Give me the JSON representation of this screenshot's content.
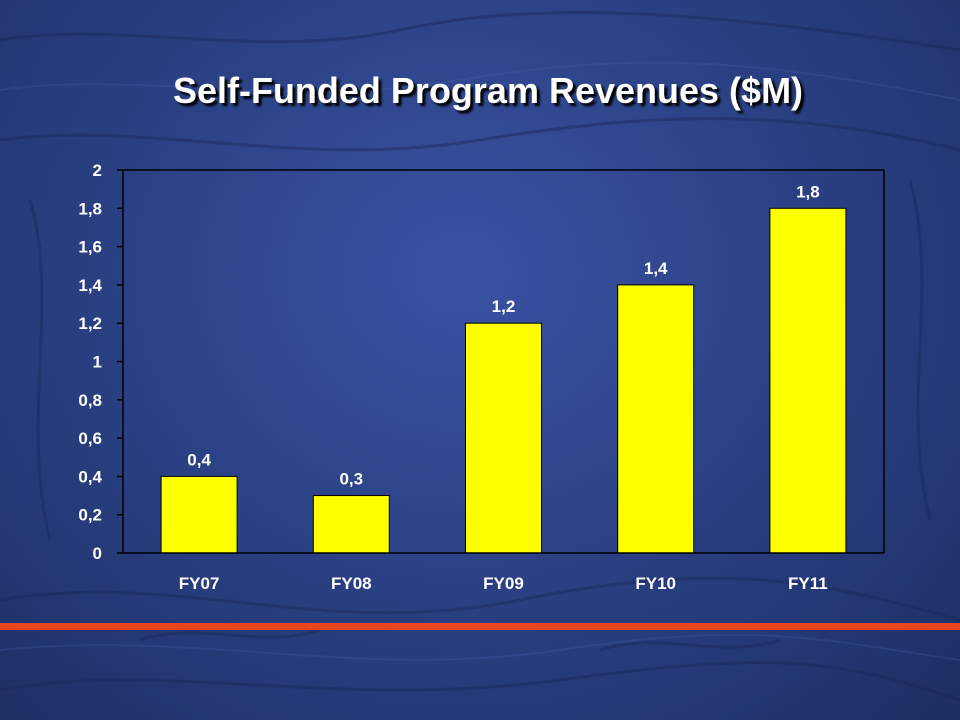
{
  "chart_data": {
    "type": "bar",
    "title": "Self-Funded Program Revenues ($M)",
    "categories": [
      "FY07",
      "FY08",
      "FY09",
      "FY10",
      "FY11"
    ],
    "values": [
      0.4,
      0.3,
      1.2,
      1.4,
      1.8
    ],
    "data_labels": [
      "0,4",
      "0,3",
      "1,2",
      "1,4",
      "1,8"
    ],
    "y_ticks": [
      0,
      0.2,
      0.4,
      0.6,
      0.8,
      1,
      1.2,
      1.4,
      1.6,
      1.8,
      2
    ],
    "y_tick_labels": [
      "0",
      "0,2",
      "0,4",
      "0,6",
      "0,8",
      "1",
      "1,2",
      "1,4",
      "1,6",
      "1,8",
      "2"
    ],
    "ylim": [
      0,
      2
    ],
    "xlabel": "",
    "ylabel": "",
    "grid": false,
    "legend": "none",
    "bar_color": "#ffff00",
    "axis_color": "#000000",
    "text_color": "#ffffff"
  },
  "slide": {
    "background_color": "#2c4286",
    "rule_color": "#e8461f"
  }
}
